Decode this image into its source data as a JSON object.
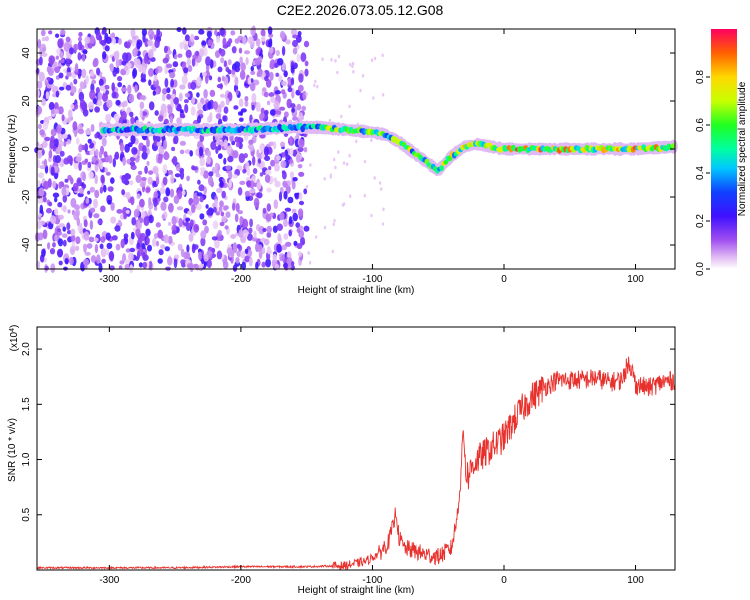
{
  "title": "C2E2.2026.073.05.12.G08",
  "chart_data": [
    {
      "type": "heatmap",
      "xlabel": "Height of straight line (km)",
      "ylabel": "Frequency (Hz)",
      "xlim": [
        -355,
        130
      ],
      "ylim": [
        -50,
        50
      ],
      "x_ticks": [
        -300,
        -200,
        -100,
        0,
        100
      ],
      "y_ticks": [
        -40,
        -20,
        0,
        20,
        40
      ],
      "colorbar": {
        "label": "Normalized spectral amplitude",
        "range": [
          0,
          1
        ],
        "ticks": [
          0.0,
          0.2,
          0.4,
          0.6,
          0.8
        ],
        "tick_labels": [
          "0.0",
          "0.2",
          "0.4",
          "0.6",
          "0.8"
        ]
      },
      "ridge_x": [
        -305,
        -280,
        -250,
        -200,
        -160,
        -140,
        -120,
        -100,
        -90,
        -80,
        -70,
        -60,
        -50,
        -45,
        -40,
        -30,
        -20,
        -10,
        0,
        50,
        100,
        130
      ],
      "ridge_y": [
        8,
        8,
        8,
        8,
        9,
        9,
        8,
        7,
        6,
        3,
        -1,
        -5,
        -9,
        -6,
        -3,
        1,
        2,
        1,
        0,
        0,
        0,
        1
      ],
      "noise_region_x": [
        -355,
        -150
      ]
    },
    {
      "type": "line",
      "xlabel": "Height of straight line (km)",
      "ylabel": "SNR (10 * v/v)",
      "y_multiplier": "(x10^4)",
      "xlim": [
        -355,
        130
      ],
      "ylim": [
        0,
        2.2
      ],
      "x_ticks": [
        -300,
        -200,
        -100,
        0,
        100
      ],
      "y_ticks": [
        0.5,
        1.0,
        1.5,
        2.0
      ],
      "y_tick_labels": [
        "0.5",
        "1.0",
        "1.5",
        "2.0"
      ],
      "series": [
        {
          "color": "#e8302c",
          "x": [
            -355,
            -300,
            -250,
            -200,
            -150,
            -120,
            -105,
            -95,
            -88,
            -84,
            -82,
            -80,
            -76,
            -70,
            -60,
            -50,
            -40,
            -36,
            -33,
            -31,
            -29,
            -27,
            -24,
            -20,
            -15,
            -10,
            -5,
            0,
            5,
            10,
            20,
            30,
            40,
            50,
            60,
            70,
            80,
            90,
            95,
            100,
            110,
            120,
            130
          ],
          "y": [
            0.02,
            0.02,
            0.02,
            0.03,
            0.03,
            0.04,
            0.08,
            0.15,
            0.25,
            0.4,
            0.55,
            0.3,
            0.2,
            0.18,
            0.14,
            0.12,
            0.2,
            0.45,
            0.8,
            1.3,
            0.9,
            0.85,
            0.95,
            1.0,
            1.05,
            1.1,
            1.15,
            1.2,
            1.3,
            1.4,
            1.55,
            1.65,
            1.72,
            1.72,
            1.72,
            1.74,
            1.7,
            1.72,
            1.9,
            1.68,
            1.65,
            1.7,
            1.72
          ]
        }
      ]
    }
  ]
}
